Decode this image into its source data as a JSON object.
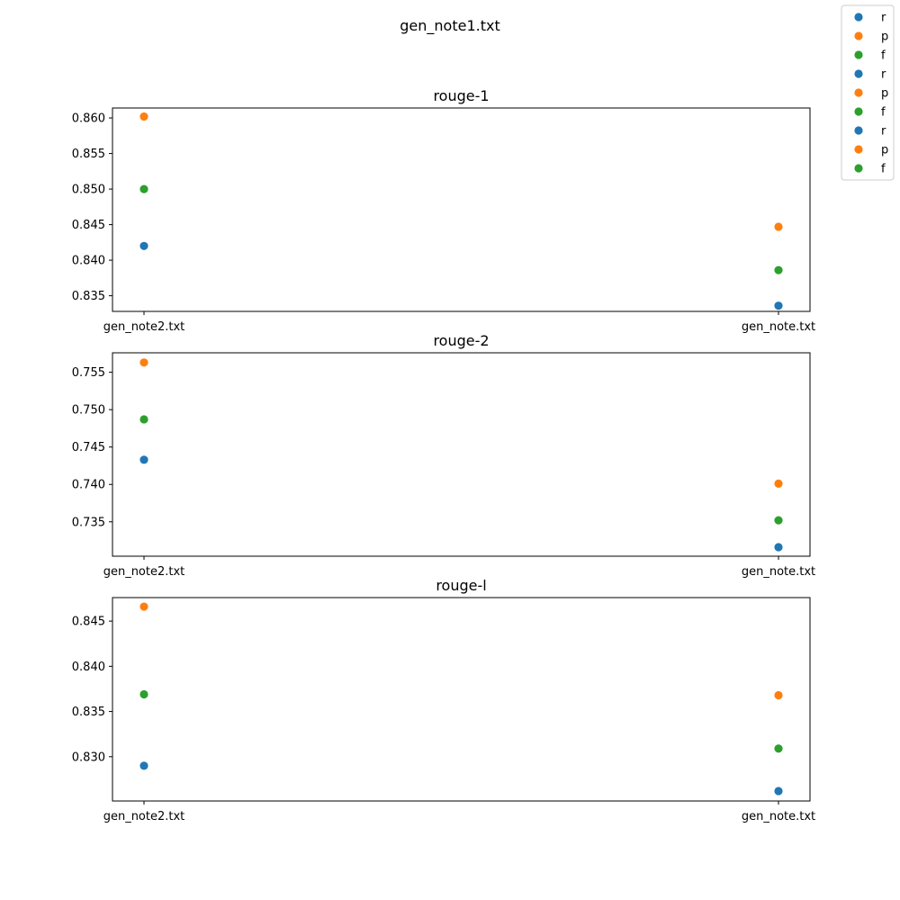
{
  "figure": {
    "suptitle": "gen_note1.txt"
  },
  "colors": {
    "r": "#1f77b4",
    "p": "#ff7f0e",
    "f": "#2ca02c",
    "axis": "#000000",
    "background": "#ffffff"
  },
  "legend": {
    "placement": "top-right",
    "entries": [
      {
        "label": "r",
        "color": "#1f77b4"
      },
      {
        "label": "p",
        "color": "#ff7f0e"
      },
      {
        "label": "f",
        "color": "#2ca02c"
      },
      {
        "label": "r",
        "color": "#1f77b4"
      },
      {
        "label": "p",
        "color": "#ff7f0e"
      },
      {
        "label": "f",
        "color": "#2ca02c"
      },
      {
        "label": "r",
        "color": "#1f77b4"
      },
      {
        "label": "p",
        "color": "#ff7f0e"
      },
      {
        "label": "f",
        "color": "#2ca02c"
      }
    ]
  },
  "chart_data": [
    {
      "type": "scatter",
      "title": "rouge-1",
      "categories": [
        "gen_note2.txt",
        "gen_note.txt"
      ],
      "ylim": [
        0.8328,
        0.8614
      ],
      "yticks": [
        "0.835",
        "0.840",
        "0.845",
        "0.850",
        "0.855",
        "0.860"
      ],
      "grid": false,
      "series": [
        {
          "name": "r",
          "color": "#1f77b4",
          "values": [
            0.842,
            0.8336
          ]
        },
        {
          "name": "p",
          "color": "#ff7f0e",
          "values": [
            0.8602,
            0.8447
          ]
        },
        {
          "name": "f",
          "color": "#2ca02c",
          "values": [
            0.85,
            0.8386
          ]
        }
      ]
    },
    {
      "type": "scatter",
      "title": "rouge-2",
      "categories": [
        "gen_note2.txt",
        "gen_note.txt"
      ],
      "ylim": [
        0.7304,
        0.7576
      ],
      "yticks": [
        "0.735",
        "0.740",
        "0.745",
        "0.750",
        "0.755"
      ],
      "grid": false,
      "series": [
        {
          "name": "r",
          "color": "#1f77b4",
          "values": [
            0.7433,
            0.7316
          ]
        },
        {
          "name": "p",
          "color": "#ff7f0e",
          "values": [
            0.7563,
            0.7401
          ]
        },
        {
          "name": "f",
          "color": "#2ca02c",
          "values": [
            0.7487,
            0.7352
          ]
        }
      ]
    },
    {
      "type": "scatter",
      "title": "rouge-l",
      "categories": [
        "gen_note2.txt",
        "gen_note.txt"
      ],
      "ylim": [
        0.8251,
        0.8476
      ],
      "yticks": [
        "0.830",
        "0.835",
        "0.840",
        "0.845"
      ],
      "grid": false,
      "series": [
        {
          "name": "r",
          "color": "#1f77b4",
          "values": [
            0.829,
            0.8262
          ]
        },
        {
          "name": "p",
          "color": "#ff7f0e",
          "values": [
            0.8466,
            0.8368
          ]
        },
        {
          "name": "f",
          "color": "#2ca02c",
          "values": [
            0.8369,
            0.8309
          ]
        }
      ]
    }
  ]
}
